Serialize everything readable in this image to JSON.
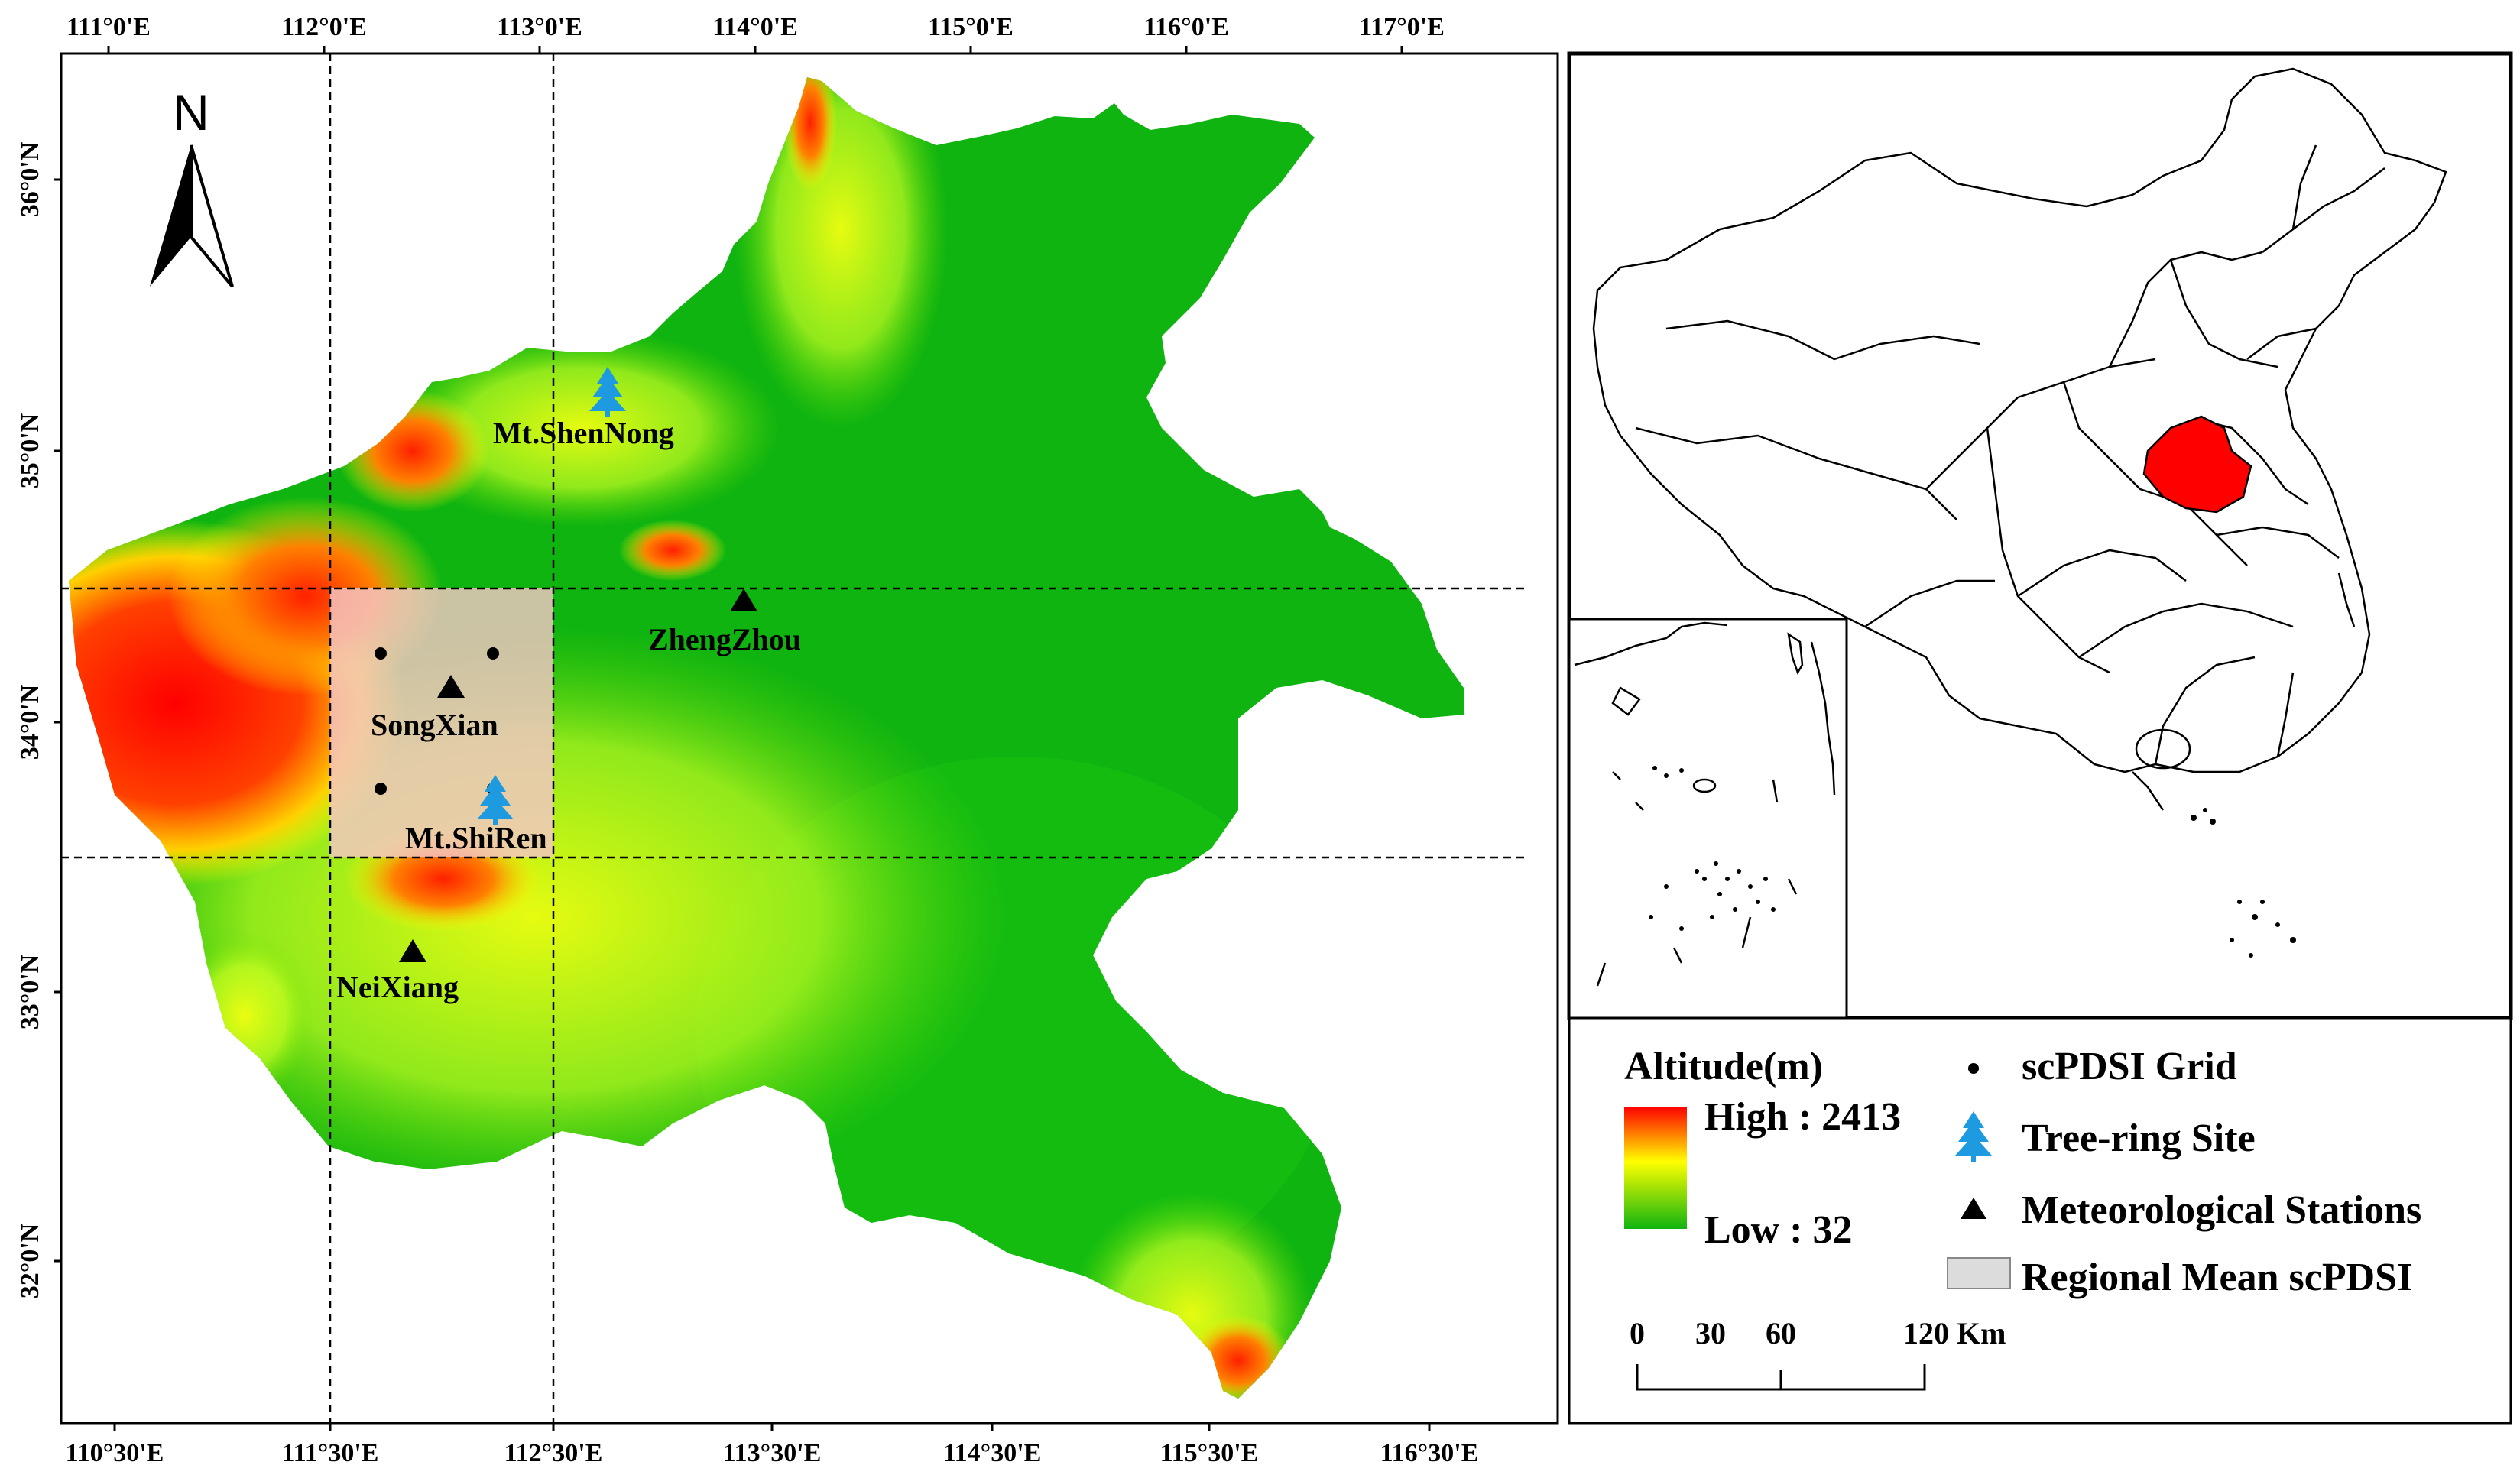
{
  "axes": {
    "top_ticks": [
      "111°0'E",
      "112°0'E",
      "113°0'E",
      "114°0'E",
      "115°0'E",
      "116°0'E",
      "117°0'E"
    ],
    "bottom_ticks": [
      "110°30'E",
      "111°30'E",
      "112°30'E",
      "113°30'E",
      "114°30'E",
      "115°30'E",
      "116°30'E"
    ],
    "left_ticks": [
      "36°0'N",
      "35°0'N",
      "34°0'N",
      "33°0'N",
      "32°0'N"
    ]
  },
  "north_arrow": {
    "label": "N"
  },
  "sites": [
    {
      "name": "Mt.ShenNong",
      "kind": "tree-ring"
    },
    {
      "name": "ZhengZhou",
      "kind": "station"
    },
    {
      "name": "SongXian",
      "kind": "station"
    },
    {
      "name": "Mt.ShiRen",
      "kind": "tree-ring"
    },
    {
      "name": "NeiXiang",
      "kind": "station"
    }
  ],
  "legend": {
    "title": "Altitude(m)",
    "high": "High : 2413",
    "low": "Low : 32",
    "items": [
      "scPDSI Grid",
      "Tree-ring Site",
      "Meteorological Stations",
      "Regional Mean scPDSI"
    ]
  },
  "scale_bar": {
    "labels": [
      "0",
      "30",
      "60",
      "120 Km"
    ]
  },
  "colors": {
    "elev_high": "#ff0000",
    "elev_mid": "#ffff00",
    "elev_low": "#10b410",
    "highlight_province": "#ff0000",
    "tree_ring": "#1e9be0",
    "region": "#f4c6c6"
  }
}
